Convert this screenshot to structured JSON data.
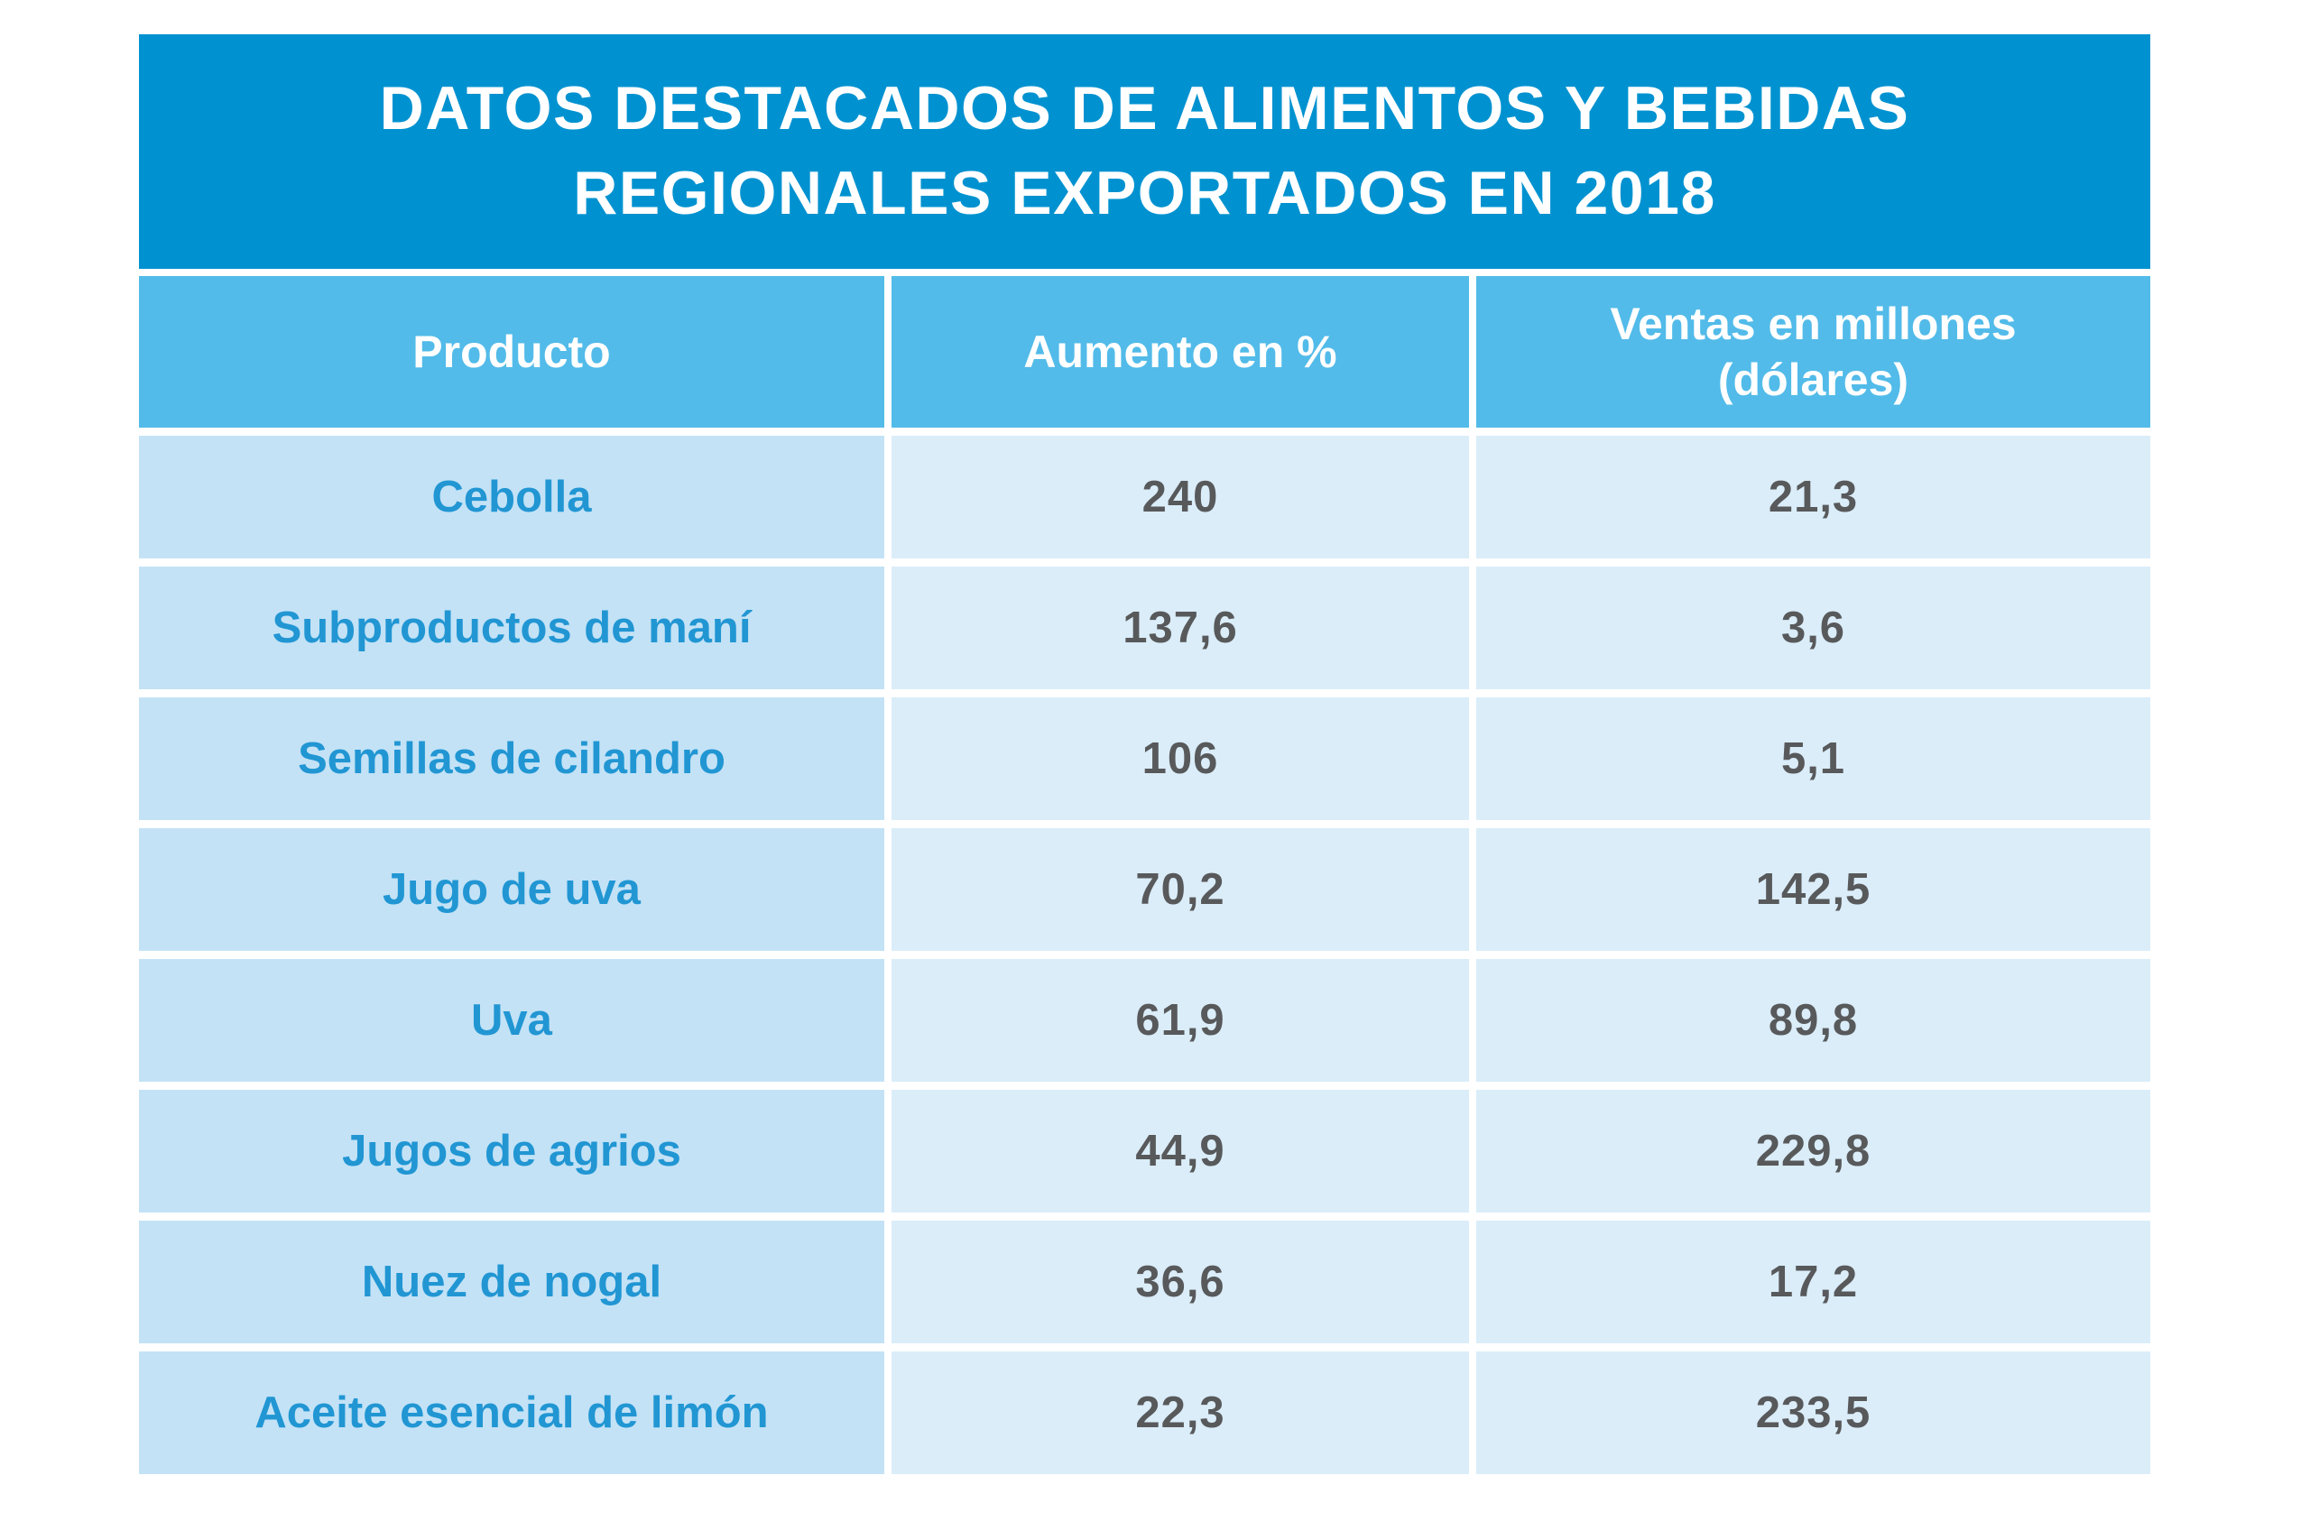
{
  "title": {
    "line1": "DATOS DESTACADOS DE ALIMENTOS Y BEBIDAS",
    "line2": "REGIONALES EXPORTADOS EN 2018"
  },
  "headers": [
    "Producto",
    "Aumento en %",
    "Ventas en millones\n(dólares)"
  ],
  "chart_data": {
    "type": "table",
    "title": "DATOS DESTACADOS DE ALIMENTOS Y BEBIDAS REGIONALES EXPORTADOS EN 2018",
    "columns": [
      "Producto",
      "Aumento en %",
      "Ventas en millones (dólares)"
    ],
    "rows": [
      [
        "Cebolla",
        "240",
        "21,3"
      ],
      [
        "Subproductos de maní",
        "137,6",
        "3,6"
      ],
      [
        "Semillas de cilandro",
        "106",
        "5,1"
      ],
      [
        "Jugo de uva",
        "70,2",
        "142,5"
      ],
      [
        "Uva",
        "61,9",
        "89,8"
      ],
      [
        "Jugos de agrios",
        "44,9",
        "229,8"
      ],
      [
        "Nuez de nogal",
        "36,6",
        "17,2"
      ],
      [
        "Aceite esencial de limón",
        "22,3",
        "233,5"
      ]
    ]
  },
  "colors": {
    "title_bg": "#0092D0",
    "header_bg": "#52BBE9",
    "header_text": "#FFFFFF",
    "product_cell_bg": "#C3E2F6",
    "value_cell_bg": "#DAEDF9",
    "product_text": "#2196D3",
    "value_text": "#58595B"
  }
}
